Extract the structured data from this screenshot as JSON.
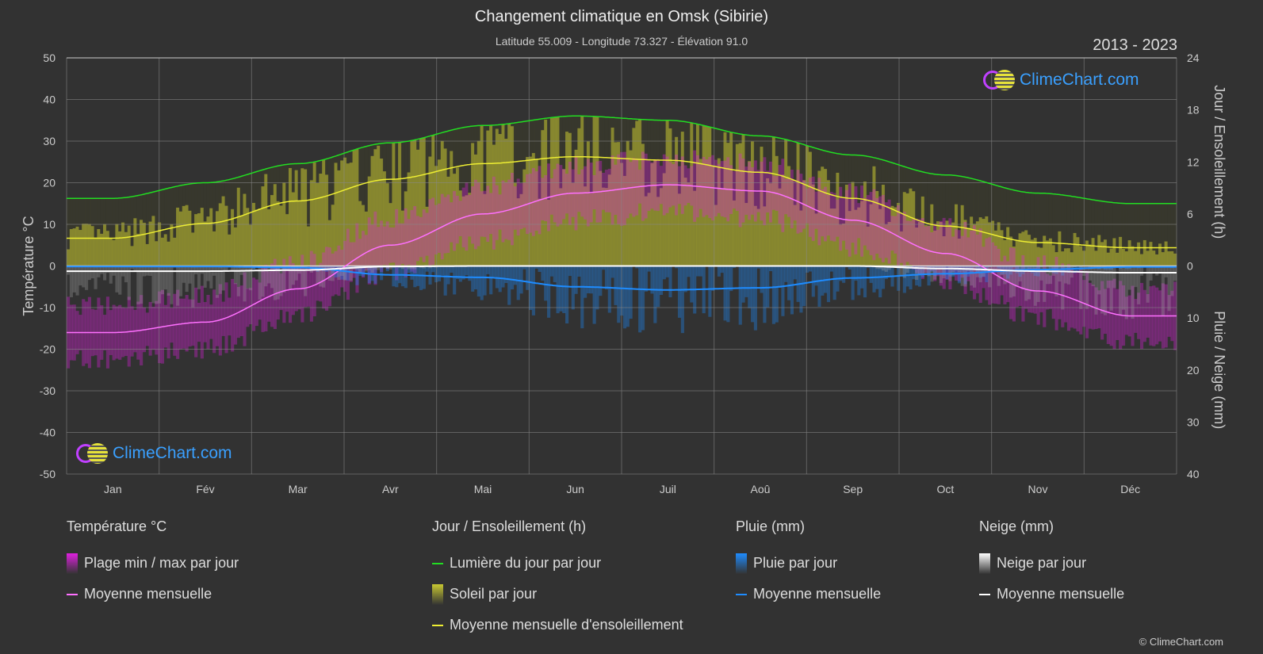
{
  "header": {
    "title": "Changement climatique en Omsk (Sibirie)",
    "subtitle": "Latitude 55.009 - Longitude 73.327 - Élévation 91.0",
    "years": "2013 - 2023"
  },
  "logo_text": "ClimeChart.com",
  "copyright": "© ClimeChart.com",
  "colors": {
    "background": "#323232",
    "temp_range": "#e020e0",
    "temp_mean": "#ff70ff",
    "daylight": "#22dd22",
    "sunshine": "#c8c832",
    "sunshine_mean": "#eeee33",
    "rain": "#1e8cff",
    "snow": "#ffffff"
  },
  "chart_data": {
    "type": "line",
    "categories": [
      "Jan",
      "Fév",
      "Mar",
      "Avr",
      "Mai",
      "Jun",
      "Juil",
      "Aoû",
      "Sep",
      "Oct",
      "Nov",
      "Déc"
    ],
    "left_axis": {
      "label": "Température °C",
      "range": [
        -50,
        50
      ],
      "ticks": [
        50,
        40,
        30,
        20,
        10,
        0,
        -10,
        -20,
        -30,
        -40,
        -50
      ]
    },
    "right_axis_top": {
      "label": "Jour / Ensoleillement (h)",
      "range": [
        0,
        24
      ],
      "ticks": [
        24,
        18,
        12,
        6,
        0
      ]
    },
    "right_axis_bottom": {
      "label": "Pluie / Neige (mm)",
      "range": [
        0,
        40
      ],
      "ticks": [
        0,
        10,
        20,
        30,
        40
      ]
    },
    "grid": true,
    "series": [
      {
        "name": "Moyenne mensuelle",
        "group": "Température °C",
        "axis": "temp",
        "values": [
          -16,
          -13.5,
          -5.5,
          5,
          12.5,
          17.5,
          19.5,
          18,
          11,
          3,
          -6,
          -12
        ]
      },
      {
        "name": "Lumière du jour par jour",
        "axis": "hours",
        "values": [
          7.8,
          9.6,
          11.8,
          14.2,
          16.2,
          17.3,
          16.8,
          15.0,
          12.8,
          10.5,
          8.4,
          7.2
        ]
      },
      {
        "name": "Moyenne mensuelle d'ensoleillement",
        "axis": "hours",
        "values": [
          3.2,
          4.9,
          7.5,
          10,
          11.8,
          12.6,
          12.2,
          10.8,
          7.8,
          4.6,
          2.7,
          2.1
        ]
      },
      {
        "name": "Moyenne mensuelle",
        "group": "Pluie (mm)",
        "axis": "precip",
        "values": [
          0.1,
          0.1,
          0.3,
          1.7,
          2.2,
          4.0,
          4.6,
          4.2,
          2.3,
          1.5,
          0.7,
          0.2
        ]
      },
      {
        "name": "Moyenne mensuelle",
        "group": "Neige (mm)",
        "axis": "precip",
        "values": [
          1.0,
          1.0,
          0.8,
          0.1,
          0,
          0,
          0,
          0,
          0,
          0.5,
          1.0,
          1.3
        ]
      }
    ]
  },
  "legend": [
    {
      "heading": "Température °C",
      "items": [
        {
          "label": "Plage min / max par jour",
          "kind": "box",
          "color": "#e020e0"
        },
        {
          "label": "Moyenne mensuelle",
          "kind": "line",
          "color": "#ff70ff"
        }
      ]
    },
    {
      "heading": "Jour / Ensoleillement (h)",
      "items": [
        {
          "label": "Lumière du jour par jour",
          "kind": "line",
          "color": "#22dd22"
        },
        {
          "label": "Soleil par jour",
          "kind": "box",
          "color": "#c8c832"
        },
        {
          "label": "Moyenne mensuelle d'ensoleillement",
          "kind": "line",
          "color": "#eeee33"
        }
      ]
    },
    {
      "heading": "Pluie (mm)",
      "items": [
        {
          "label": "Pluie par jour",
          "kind": "box",
          "color": "#1e8cff"
        },
        {
          "label": "Moyenne mensuelle",
          "kind": "line",
          "color": "#1e8cff"
        }
      ]
    },
    {
      "heading": "Neige (mm)",
      "items": [
        {
          "label": "Neige par jour",
          "kind": "box",
          "color": "#ffffff"
        },
        {
          "label": "Moyenne mensuelle",
          "kind": "line",
          "color": "#ffffff"
        }
      ]
    }
  ]
}
